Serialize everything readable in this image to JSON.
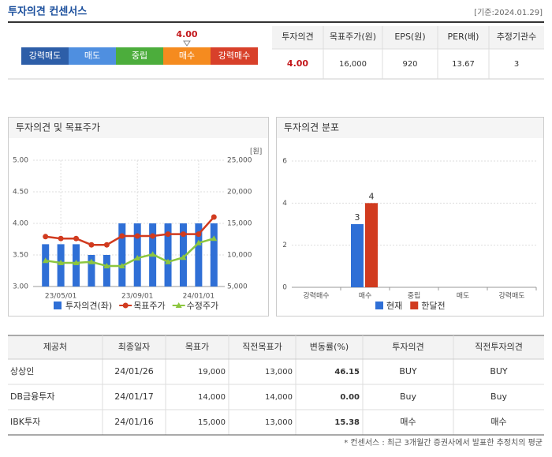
{
  "header": {
    "title": "투자의견 컨센서스",
    "date": "[기준:2024.01.29]"
  },
  "rating": {
    "segments": [
      {
        "label": "강력매도",
        "color": "#2d5ea8"
      },
      {
        "label": "매도",
        "color": "#4f8fe0"
      },
      {
        "label": "중립",
        "color": "#4cad3c"
      },
      {
        "label": "매수",
        "color": "#f58b1f"
      },
      {
        "label": "강력매수",
        "color": "#d8402a"
      }
    ],
    "value": {
      "value": 4,
      "label": "4.00"
    },
    "range": [
      1,
      5
    ]
  },
  "summary_table": {
    "headers": [
      "투자의견",
      "목표주가(원)",
      "EPS(원)",
      "PER(배)",
      "추정기관수"
    ],
    "row": [
      "4.00",
      "16,000",
      "920",
      "13.67",
      "3"
    ]
  },
  "chart_data": [
    {
      "type": "combo",
      "title": "투자의견 및 목표주가",
      "y2_unit": "[원]",
      "categories": [
        null,
        "23/05/01",
        null,
        null,
        null,
        null,
        "23/09/01",
        null,
        null,
        null,
        "24/01/01",
        null
      ],
      "ylim": [
        3,
        5
      ],
      "yticks": [
        {
          "value": 3,
          "label": "3.00"
        },
        {
          "value": 3.5,
          "label": "3.50"
        },
        {
          "value": 4,
          "label": "4.00"
        },
        {
          "value": 4.5,
          "label": "4.50"
        },
        {
          "value": 5,
          "label": "5.00"
        }
      ],
      "y2lim": [
        5000,
        25000
      ],
      "y2ticks": [
        {
          "value": 5000,
          "label": "5,000"
        },
        {
          "value": 10000,
          "label": "10,000"
        },
        {
          "value": 15000,
          "label": "15,000"
        },
        {
          "value": 20000,
          "label": "20,000"
        },
        {
          "value": 25000,
          "label": "25,000"
        }
      ],
      "grid": true,
      "series": [
        {
          "name": "투자의견(좌)",
          "color": "#2f6fd6",
          "values": [
            3.67,
            3.67,
            3.67,
            3.5,
            3.5,
            4,
            4,
            4,
            4,
            4,
            4,
            4
          ]
        },
        {
          "name": "목표주가",
          "color": "#d13b1f",
          "axis": "y2",
          "marker": "circle",
          "values": [
            12900,
            12600,
            12600,
            11600,
            11600,
            13000,
            13000,
            13000,
            13300,
            13300,
            13300,
            16000
          ]
        },
        {
          "name": "수정주가",
          "color": "#8cc63f",
          "axis": "y2",
          "marker": "triangle",
          "values": [
            9100,
            8750,
            8750,
            8900,
            8250,
            8250,
            9500,
            10100,
            8900,
            9600,
            11900,
            12600
          ]
        }
      ]
    },
    {
      "type": "bar",
      "title": "투자의견 분포",
      "categories": [
        "강력매수",
        "매수",
        "중립",
        "매도",
        "강력매도"
      ],
      "ylim": [
        0,
        6
      ],
      "yticks": [
        0,
        2,
        4,
        6
      ],
      "grid": true,
      "series": [
        {
          "name": "현재",
          "color": "#2f6fd6",
          "values": [
            0,
            3,
            0,
            0,
            0
          ]
        },
        {
          "name": "한달전",
          "color": "#d13b1f",
          "values": [
            0,
            4,
            0,
            0,
            0
          ]
        }
      ]
    }
  ],
  "table": {
    "headers": [
      "제공처",
      "최종일자",
      "목표가",
      "직전목표가",
      "변동률(%)",
      "투자의견",
      "직전투자의견"
    ],
    "rows": [
      [
        "상상인",
        "24/01/26",
        "19,000",
        "13,000",
        "46.15",
        "BUY",
        "BUY"
      ],
      [
        "DB금융투자",
        "24/01/17",
        "14,000",
        "14,000",
        "0.00",
        "Buy",
        "Buy"
      ],
      [
        "IBK투자",
        "24/01/16",
        "15,000",
        "13,000",
        "15.38",
        "매수",
        "매수"
      ]
    ]
  },
  "footnote": "* 컨센서스 : 최근 3개월간 증권사에서 발표한 추정치의 평균"
}
